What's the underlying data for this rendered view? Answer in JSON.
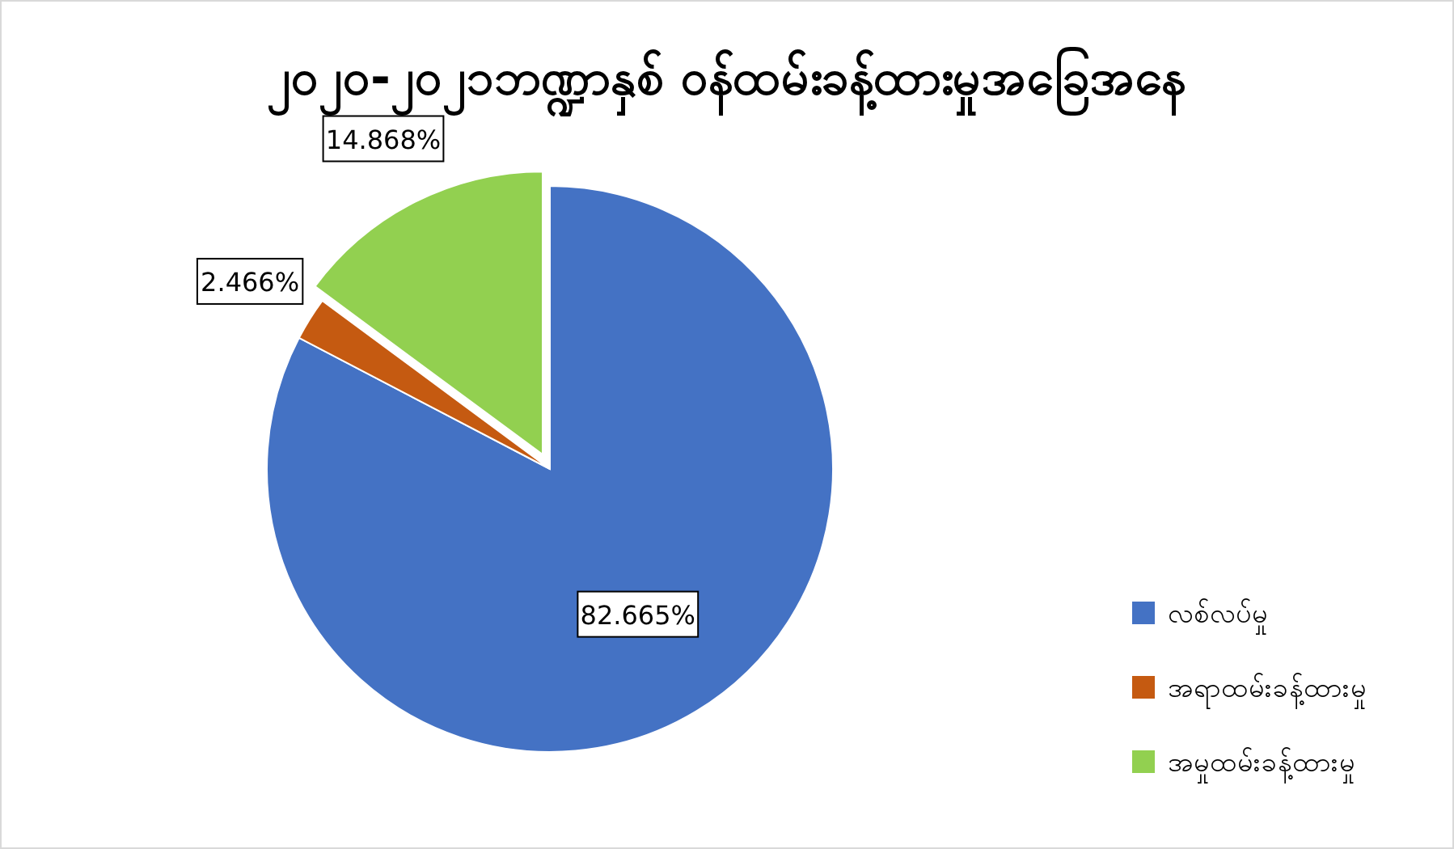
{
  "chart_data": {
    "type": "pie",
    "title": "၂၀၂၀-၂၀၂၁ဘဏ္ဍာနှစ် ဝန်ထမ်းခန့်ထားမှုအခြေအနေ",
    "categories": [
      "လစ်လပ်မှု",
      "အရာထမ်းခန့်ထားမှု",
      "အမှုထမ်းခန့်ထားမှု"
    ],
    "values": [
      82.665,
      2.466,
      14.868
    ],
    "colors": [
      "#4472c4",
      "#c55a11",
      "#92d050"
    ],
    "value_labels": [
      "82.665%",
      "2.466%",
      "14.868%"
    ],
    "legend": "right"
  }
}
